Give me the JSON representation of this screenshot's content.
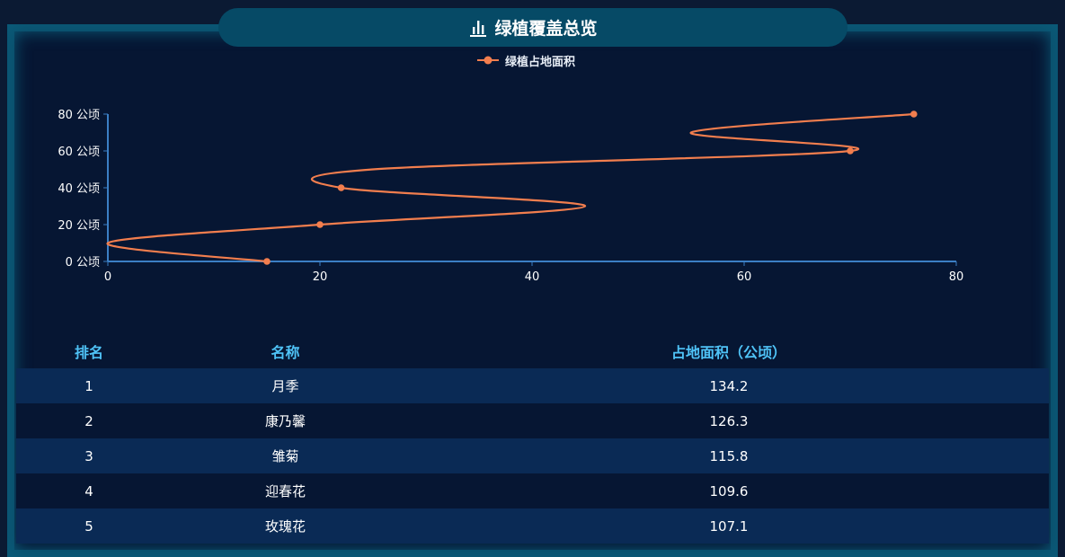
{
  "header": {
    "title": "绿植覆盖总览",
    "title_icon": "bar-chart-icon"
  },
  "chart_data": {
    "type": "line",
    "smooth": true,
    "series": [
      {
        "name": "绿植占地面积",
        "color": "#f27e4e",
        "points": [
          {
            "x": 15,
            "y": 0
          },
          {
            "x": 0,
            "y": 10
          },
          {
            "x": 20,
            "y": 20
          },
          {
            "x": 45,
            "y": 30
          },
          {
            "x": 22,
            "y": 40
          },
          {
            "x": 25,
            "y": 50
          },
          {
            "x": 70,
            "y": 60
          },
          {
            "x": 55,
            "y": 70
          },
          {
            "x": 76,
            "y": 80
          }
        ],
        "markers": [
          [
            15,
            0
          ],
          [
            20,
            20
          ],
          [
            22,
            40
          ],
          [
            70,
            60
          ],
          [
            76,
            80
          ]
        ]
      }
    ],
    "xlim": [
      0,
      80
    ],
    "ylim": [
      0,
      80
    ],
    "x_ticks": [
      0,
      20,
      40,
      60,
      80
    ],
    "y_ticks": [
      {
        "value": 0,
        "label": "0 公顷"
      },
      {
        "value": 20,
        "label": "20 公顷"
      },
      {
        "value": 40,
        "label": "40 公顷"
      },
      {
        "value": 60,
        "label": "60 公顷"
      },
      {
        "value": 80,
        "label": "80 公顷"
      }
    ],
    "legend": "top-center",
    "grid": false,
    "axis_color": "#3b7fc4"
  },
  "table": {
    "headers": {
      "rank": "排名",
      "name": "名称",
      "area": "占地面积（公顷）"
    },
    "rows": [
      {
        "rank": "1",
        "name": "月季",
        "area": "134.2"
      },
      {
        "rank": "2",
        "name": "康乃馨",
        "area": "126.3"
      },
      {
        "rank": "3",
        "name": "雏菊",
        "area": "115.8"
      },
      {
        "rank": "4",
        "name": "迎春花",
        "area": "109.6"
      },
      {
        "rank": "5",
        "name": "玫瑰花",
        "area": "107.1"
      }
    ]
  }
}
